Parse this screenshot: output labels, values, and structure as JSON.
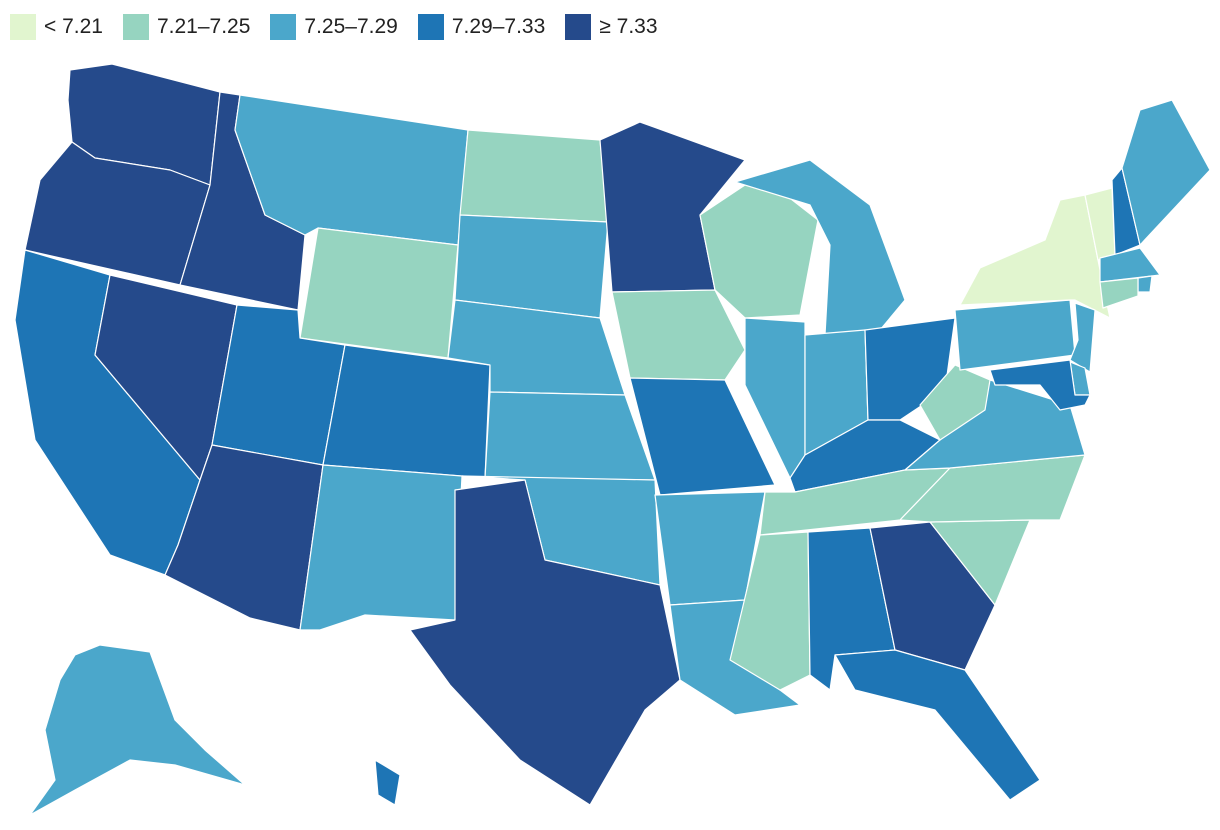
{
  "legend": [
    {
      "label": "< 7.21",
      "color": "#e1f5cf"
    },
    {
      "label": "7.21–7.25",
      "color": "#96d4c0"
    },
    {
      "label": "7.25–7.29",
      "color": "#4ba7cb"
    },
    {
      "label": "7.29–7.33",
      "color": "#1e75b5"
    },
    {
      "label": "≥ 7.33",
      "color": "#254a8b"
    }
  ],
  "states": [
    {
      "abbr": "WA",
      "class": 4
    },
    {
      "abbr": "OR",
      "class": 4
    },
    {
      "abbr": "CA",
      "class": 3
    },
    {
      "abbr": "NV",
      "class": 4
    },
    {
      "abbr": "ID",
      "class": 4
    },
    {
      "abbr": "MT",
      "class": 2
    },
    {
      "abbr": "WY",
      "class": 1
    },
    {
      "abbr": "UT",
      "class": 3
    },
    {
      "abbr": "AZ",
      "class": 4
    },
    {
      "abbr": "CO",
      "class": 3
    },
    {
      "abbr": "NM",
      "class": 2
    },
    {
      "abbr": "ND",
      "class": 1
    },
    {
      "abbr": "SD",
      "class": 2
    },
    {
      "abbr": "NE",
      "class": 2
    },
    {
      "abbr": "KS",
      "class": 2
    },
    {
      "abbr": "OK",
      "class": 2
    },
    {
      "abbr": "TX",
      "class": 4
    },
    {
      "abbr": "MN",
      "class": 4
    },
    {
      "abbr": "IA",
      "class": 1
    },
    {
      "abbr": "MO",
      "class": 3
    },
    {
      "abbr": "AR",
      "class": 2
    },
    {
      "abbr": "LA",
      "class": 2
    },
    {
      "abbr": "WI",
      "class": 1
    },
    {
      "abbr": "IL",
      "class": 2
    },
    {
      "abbr": "MI",
      "class": 2
    },
    {
      "abbr": "IN",
      "class": 2
    },
    {
      "abbr": "OH",
      "class": 3
    },
    {
      "abbr": "KY",
      "class": 3
    },
    {
      "abbr": "TN",
      "class": 1
    },
    {
      "abbr": "MS",
      "class": 1
    },
    {
      "abbr": "AL",
      "class": 3
    },
    {
      "abbr": "GA",
      "class": 4
    },
    {
      "abbr": "FL",
      "class": 3
    },
    {
      "abbr": "SC",
      "class": 1
    },
    {
      "abbr": "NC",
      "class": 1
    },
    {
      "abbr": "VA",
      "class": 2
    },
    {
      "abbr": "WV",
      "class": 1
    },
    {
      "abbr": "PA",
      "class": 2
    },
    {
      "abbr": "NY",
      "class": 0
    },
    {
      "abbr": "VT",
      "class": 0
    },
    {
      "abbr": "NH",
      "class": 3
    },
    {
      "abbr": "ME",
      "class": 2
    },
    {
      "abbr": "MA",
      "class": 2
    },
    {
      "abbr": "RI",
      "class": 2
    },
    {
      "abbr": "CT",
      "class": 1
    },
    {
      "abbr": "NJ",
      "class": 2
    },
    {
      "abbr": "DE",
      "class": 2
    },
    {
      "abbr": "MD",
      "class": 3
    },
    {
      "abbr": "AK",
      "class": 2
    },
    {
      "abbr": "HI",
      "class": 3
    }
  ]
}
